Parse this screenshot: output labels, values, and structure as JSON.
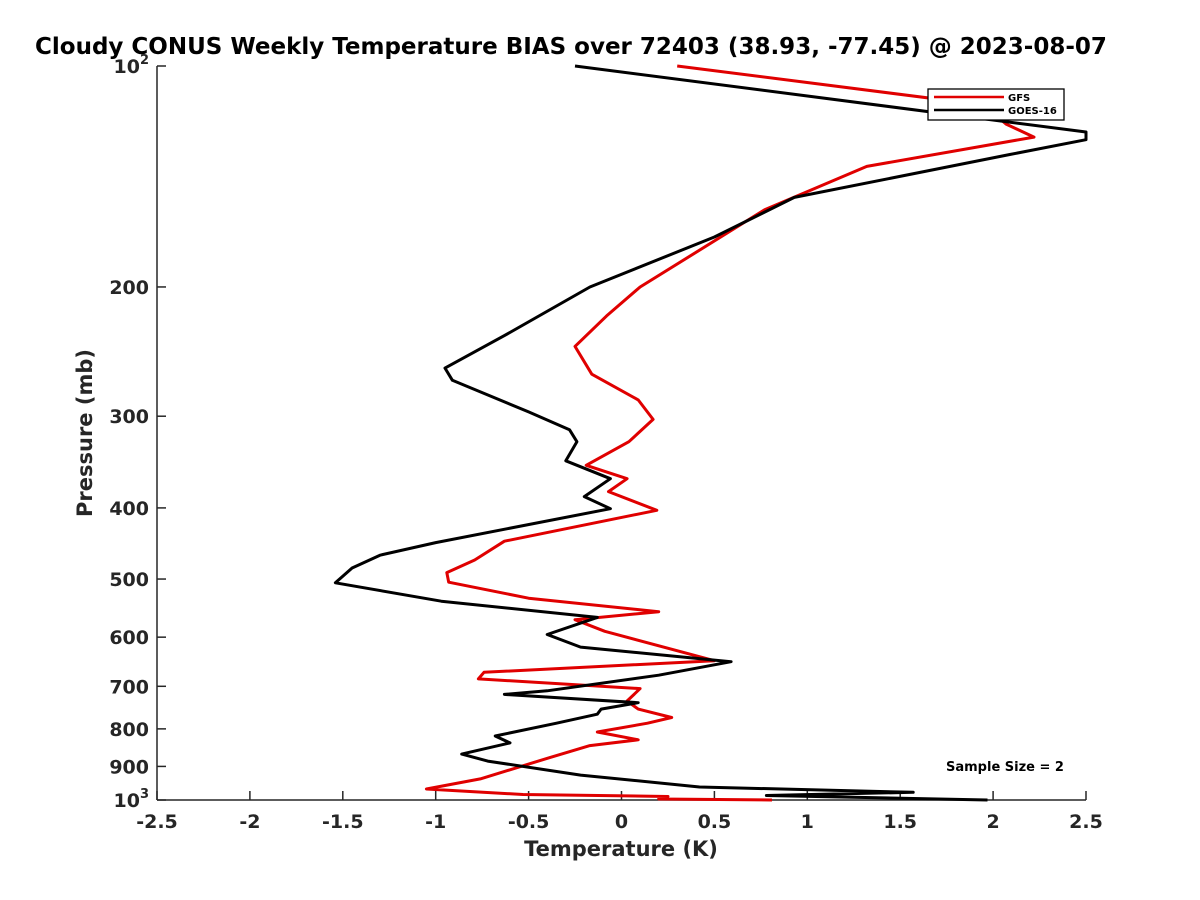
{
  "chart_data": {
    "type": "line",
    "title": "Cloudy CONUS Weekly Temperature BIAS over 72403 (38.93, -77.45) @ 2023-08-07",
    "xlabel": "Temperature (K)",
    "ylabel": "Pressure (mb)",
    "xlim": [
      -2.5,
      2.5
    ],
    "ylim": [
      100,
      1000
    ],
    "y_scale": "log",
    "y_reversed": true,
    "grid": false,
    "legend_position": "top-right",
    "x_ticks": [
      "-2.5",
      "-2",
      "-1.5",
      "-1",
      "-0.5",
      "0",
      "0.5",
      "1",
      "1.5",
      "2",
      "2.5"
    ],
    "y_ticks": [
      {
        "base": "10",
        "exp": "2"
      },
      {
        "base": "200",
        "exp": ""
      },
      {
        "base": "300",
        "exp": ""
      },
      {
        "base": "400",
        "exp": ""
      },
      {
        "base": "500",
        "exp": ""
      },
      {
        "base": "600",
        "exp": ""
      },
      {
        "base": "700",
        "exp": ""
      },
      {
        "base": "800",
        "exp": ""
      },
      {
        "base": "900",
        "exp": ""
      },
      {
        "base": "10",
        "exp": "3"
      }
    ],
    "annotation": "Sample Size = 2",
    "series": [
      {
        "name": "GFS",
        "color": "#e00000",
        "x": [
          0.3,
          1.95,
          2.07,
          2.22,
          1.32,
          0.77,
          0.1,
          -0.08,
          -0.25,
          -0.16,
          0.09,
          0.17,
          0.04,
          -0.19,
          0.03,
          -0.07,
          0.19,
          -0.63,
          -0.79,
          -0.94,
          -0.93,
          -0.5,
          0.2,
          -0.25,
          -0.09,
          0.5,
          -0.74,
          -0.77,
          0.1,
          0.03,
          0.09,
          0.27,
          0.14,
          -0.13,
          0.09,
          -0.17,
          -0.39,
          -0.76,
          -1.05,
          -0.53,
          0.25,
          0.2,
          0.81
        ],
        "y": [
          100,
          113,
          120,
          125,
          137,
          157,
          200,
          219,
          241,
          263,
          285,
          303,
          325,
          350,
          365,
          380,
          403,
          444,
          471,
          490,
          505,
          531,
          554,
          568,
          589,
          646,
          670,
          684,
          705,
          733,
          752,
          772,
          786,
          808,
          828,
          843,
          876,
          936,
          966,
          983,
          989,
          997,
          1000
        ]
      },
      {
        "name": "GOES-16",
        "color": "#000000",
        "x": [
          -0.25,
          2.5,
          2.5,
          2.09,
          0.93,
          0.5,
          -0.17,
          -0.63,
          -0.95,
          -0.91,
          -0.5,
          -0.28,
          -0.24,
          -0.3,
          -0.06,
          -0.2,
          -0.06,
          -1.0,
          -1.3,
          -1.45,
          -1.54,
          -0.97,
          -0.13,
          -0.4,
          -0.22,
          0.59,
          0.2,
          -0.4,
          -0.63,
          0.09,
          -0.11,
          -0.13,
          -0.35,
          -0.68,
          -0.6,
          -0.86,
          -0.72,
          -0.22,
          0.42,
          1.57,
          0.78,
          1.97
        ],
        "y": [
          100,
          123,
          126,
          132,
          151,
          171,
          200,
          233,
          258,
          268,
          296,
          313,
          325,
          345,
          365,
          386,
          401,
          446,
          464,
          483,
          506,
          536,
          564,
          595,
          619,
          648,
          676,
          710,
          718,
          737,
          752,
          764,
          786,
          818,
          836,
          866,
          885,
          925,
          960,
          976,
          986,
          1000
        ]
      }
    ]
  }
}
